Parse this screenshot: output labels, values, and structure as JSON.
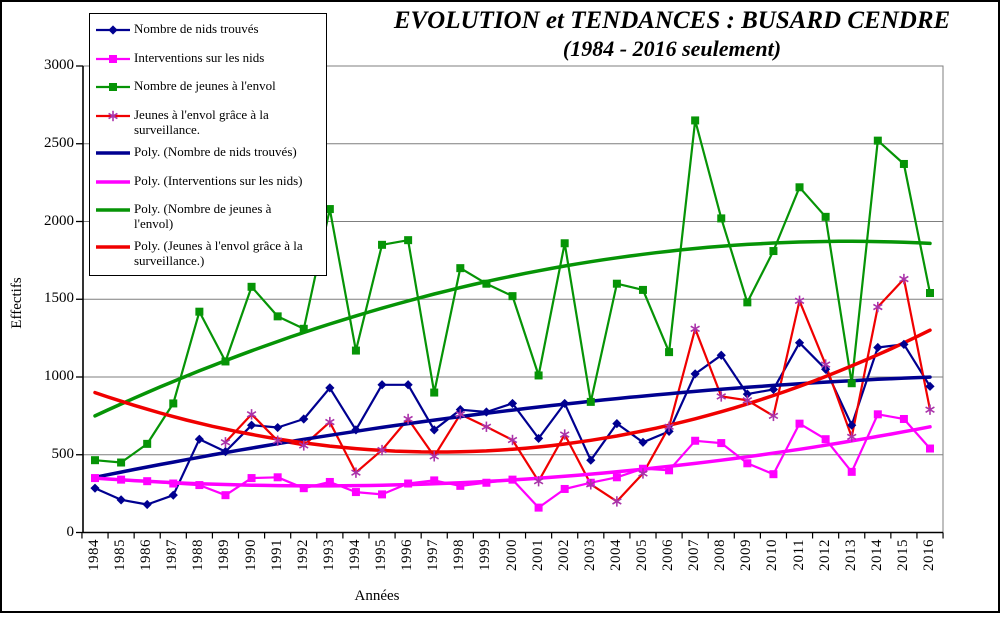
{
  "title": {
    "line1": "EVOLUTION et TENDANCES : BUSARD CENDRE",
    "line2": "(1984 - 2016 seulement)"
  },
  "axes": {
    "y_label": "Effectifs",
    "x_label": "Années",
    "y_ticks": [
      0,
      500,
      1000,
      1500,
      2000,
      2500,
      3000
    ]
  },
  "legend": {
    "items": [
      {
        "label": "Nombre de nids trouvés",
        "kind": "series",
        "index": 0
      },
      {
        "label": "Interventions sur les nids",
        "kind": "series",
        "index": 1
      },
      {
        "label": "Nombre de jeunes à l'envol",
        "kind": "series",
        "index": 2
      },
      {
        "label": "Jeunes à l'envol grâce à la\nsurveillance.",
        "kind": "series",
        "index": 3
      },
      {
        "label": "Poly. (Nombre de nids trouvés)",
        "kind": "trend",
        "index": 0
      },
      {
        "label": "Poly. (Interventions sur les nids)",
        "kind": "trend",
        "index": 1
      },
      {
        "label": "Poly. (Nombre de jeunes à\nl'envol)",
        "kind": "trend",
        "index": 2
      },
      {
        "label": "Poly. (Jeunes à l'envol grâce à la\nsurveillance.)",
        "kind": "trend",
        "index": 3
      }
    ]
  },
  "chart_data": {
    "type": "line",
    "title": "EVOLUTION et TENDANCES : BUSARD CENDRE (1984 - 2016 seulement)",
    "xlabel": "Années",
    "ylabel": "Effectifs",
    "ylim": [
      0,
      3000
    ],
    "grid": "horizontal",
    "legend_position": "top-left",
    "x": [
      1984,
      1985,
      1986,
      1987,
      1988,
      1989,
      1990,
      1991,
      1992,
      1993,
      1994,
      1995,
      1996,
      1997,
      1998,
      1999,
      2000,
      2001,
      2002,
      2003,
      2004,
      2005,
      2006,
      2007,
      2008,
      2009,
      2010,
      2011,
      2012,
      2013,
      2014,
      2015,
      2016
    ],
    "series": [
      {
        "name": "Nombre de nids trouvés",
        "color": "#000090",
        "marker": "diamond",
        "marker_color": "#000090",
        "values": [
          285,
          210,
          180,
          240,
          600,
          520,
          690,
          675,
          730,
          930,
          660,
          950,
          950,
          660,
          790,
          775,
          830,
          605,
          830,
          465,
          700,
          580,
          650,
          1020,
          1140,
          890,
          920,
          1220,
          1050,
          690,
          1190,
          1210,
          940
        ]
      },
      {
        "name": "Interventions sur les nids",
        "color": "#ff00ff",
        "marker": "square",
        "marker_color": "#ff00ff",
        "values": [
          350,
          340,
          330,
          315,
          305,
          240,
          350,
          355,
          285,
          325,
          260,
          245,
          315,
          335,
          300,
          320,
          340,
          160,
          280,
          320,
          355,
          410,
          400,
          590,
          575,
          445,
          375,
          700,
          600,
          390,
          760,
          730,
          540
        ]
      },
      {
        "name": "Nombre de jeunes à l'envol",
        "color": "#069406",
        "marker": "square",
        "marker_color": "#069406",
        "values": [
          465,
          450,
          570,
          830,
          1420,
          1100,
          1580,
          1390,
          1310,
          2080,
          1170,
          1850,
          1880,
          900,
          1700,
          1600,
          1520,
          1010,
          1860,
          840,
          1600,
          1560,
          1160,
          2650,
          2020,
          1480,
          1810,
          2220,
          2030,
          960,
          2520,
          2370,
          1540
        ]
      },
      {
        "name": "Jeunes à l'envol grâce à la surveillance.",
        "color": "#f00000",
        "marker": "asterisk",
        "marker_color": "#aa33aa",
        "values": [
          null,
          null,
          null,
          null,
          null,
          580,
          760,
          590,
          560,
          710,
          385,
          530,
          730,
          490,
          760,
          680,
          595,
          330,
          630,
          310,
          200,
          380,
          680,
          1310,
          875,
          850,
          750,
          1490,
          1080,
          615,
          1450,
          1630,
          790
        ]
      }
    ],
    "trends": [
      {
        "name": "Poly. (Nombre de nids trouvés)",
        "color": "#000090",
        "coeffs": [
          355,
          33.9,
          -0.43
        ]
      },
      {
        "name": "Poly. (Interventions sur les nids)",
        "color": "#ff00ff",
        "coeffs": [
          350,
          -11.77,
          0.69
        ]
      },
      {
        "name": "Poly. (Nombre de jeunes à l'envol)",
        "color": "#069406",
        "coeffs": [
          750,
          77.8,
          -1.348
        ]
      },
      {
        "name": "Poly. (Jeunes à l'envol grâce à la surveillance.)",
        "color": "#f00000",
        "coeffs": [
          900,
          -58.1,
          2.207
        ]
      }
    ]
  }
}
